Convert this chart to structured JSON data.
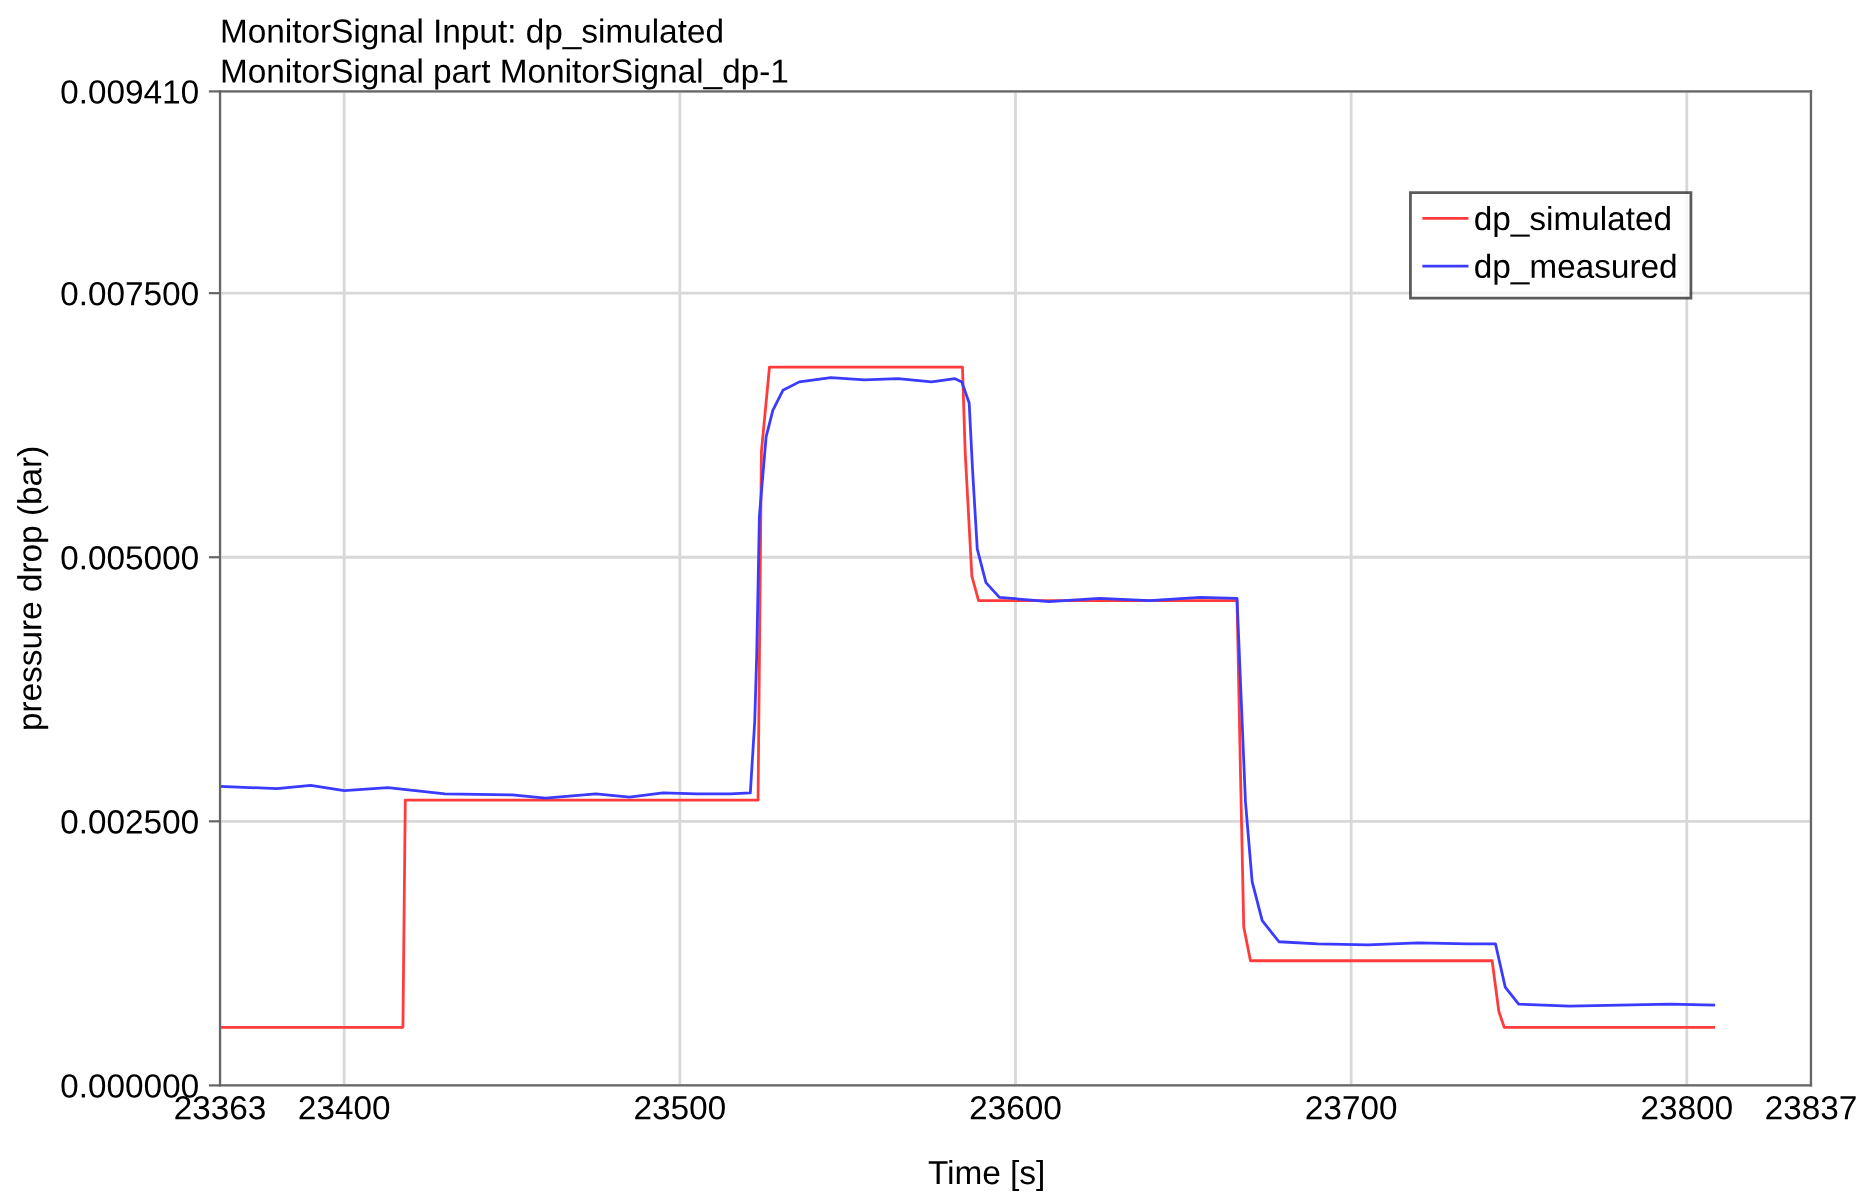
{
  "chart_data": {
    "type": "line",
    "title": "MonitorSignal Input: dp_simulated",
    "subtitle": "MonitorSignal part MonitorSignal_dp-1",
    "xlabel": "Time [s]",
    "ylabel": "pressure drop (bar)",
    "xlim": [
      23363,
      23837
    ],
    "xticks": [
      23363,
      23400,
      23500,
      23600,
      23700,
      23800,
      23837
    ],
    "ylim": [
      0,
      0.00941
    ],
    "yticks": [
      {
        "value": 0,
        "label": "0.000000"
      },
      {
        "value": 0.0025,
        "label": "0.002500"
      },
      {
        "value": 0.005,
        "label": "0.005000"
      },
      {
        "value": 0.0075,
        "label": "0.007500"
      },
      {
        "value": 0.00941,
        "label": "0.009410"
      }
    ],
    "grid": true,
    "legend": "top right",
    "marker": "none",
    "line_style": "solid",
    "series": [
      {
        "name": "dp_simulated",
        "color": "#ff3b3b",
        "x": [
          23363,
          23417.5,
          23418.2,
          23523.3,
          23524.3,
          23526.7,
          23584.2,
          23585,
          23587,
          23589,
          23666,
          23667,
          23668,
          23670,
          23742,
          23744,
          23745.6,
          23808
        ],
        "values": [
          0.00055,
          0.00055,
          0.0027,
          0.0027,
          0.006,
          0.0068,
          0.0068,
          0.006,
          0.00482,
          0.00459,
          0.00459,
          0.003,
          0.0015,
          0.00118,
          0.00118,
          0.0007,
          0.00055,
          0.00055
        ]
      },
      {
        "name": "dp_measured",
        "color": "#3b3bff",
        "x": [
          23363,
          23380,
          23390,
          23400,
          23413,
          23430,
          23450,
          23460,
          23475,
          23485,
          23495,
          23505,
          23515,
          23521,
          23522.3,
          23522.9,
          23523.7,
          23525.7,
          23527.7,
          23530.7,
          23535.6,
          23545,
          23555,
          23565,
          23575,
          23582,
          23584,
          23586.2,
          23587.2,
          23588.6,
          23591.2,
          23595.2,
          23610,
          23625,
          23640,
          23655,
          23666,
          23668.5,
          23670.5,
          23673.5,
          23678.5,
          23690,
          23705,
          23720,
          23735,
          23743,
          23745.9,
          23749.9,
          23765,
          23780,
          23795,
          23808
        ],
        "values": [
          0.00283,
          0.00281,
          0.00284,
          0.00279,
          0.00282,
          0.00276,
          0.00275,
          0.00272,
          0.00276,
          0.00273,
          0.00277,
          0.00276,
          0.00276,
          0.00277,
          0.00344,
          0.00407,
          0.00539,
          0.00614,
          0.00639,
          0.00658,
          0.00666,
          0.0067,
          0.00668,
          0.00669,
          0.00666,
          0.00669,
          0.00666,
          0.00646,
          0.00583,
          0.00508,
          0.00476,
          0.00462,
          0.00458,
          0.00461,
          0.00459,
          0.00462,
          0.00461,
          0.00269,
          0.00193,
          0.00156,
          0.00136,
          0.00134,
          0.00133,
          0.00135,
          0.00134,
          0.00134,
          0.00093,
          0.00077,
          0.00075,
          0.00076,
          0.00077,
          0.00076
        ]
      }
    ]
  }
}
